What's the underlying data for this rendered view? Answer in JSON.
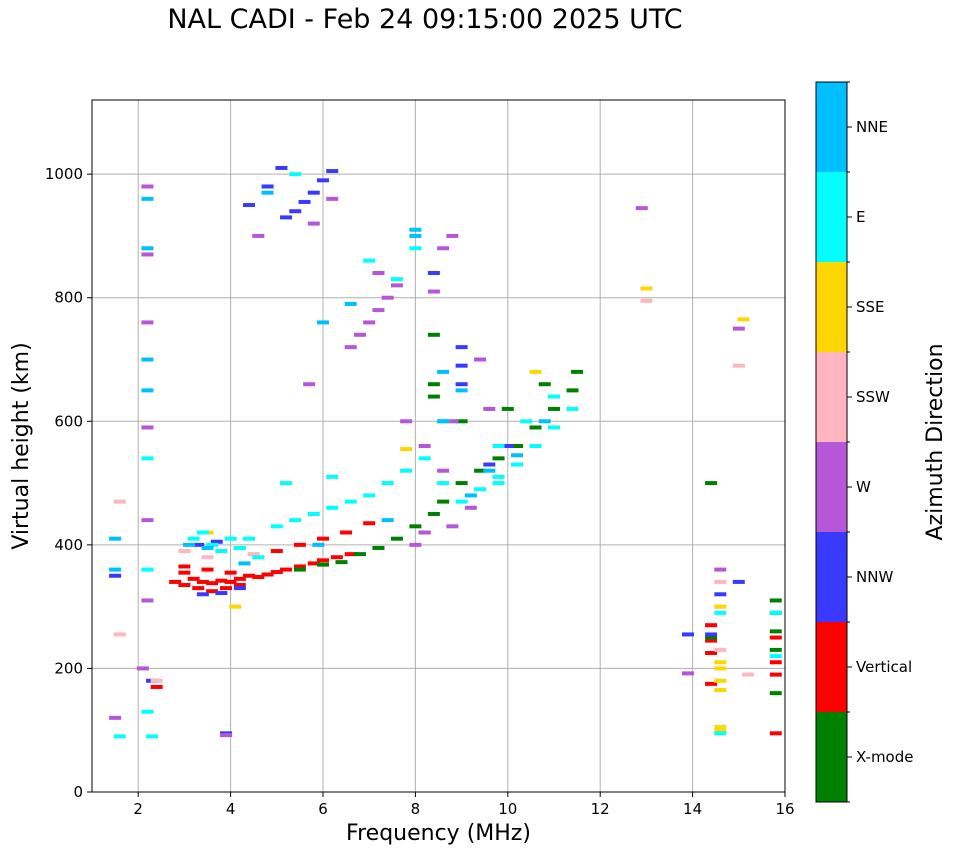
{
  "chart_data": {
    "type": "scatter",
    "title": "NAL CADI - Feb 24 09:15:00 2025 UTC",
    "xlabel": "Frequency (MHz)",
    "ylabel": "Virtual height (km)",
    "xlim": [
      1,
      16
    ],
    "ylim": [
      0,
      1120
    ],
    "xticks": [
      2,
      4,
      6,
      8,
      10,
      12,
      14,
      16
    ],
    "yticks": [
      0,
      200,
      400,
      600,
      800,
      1000
    ],
    "grid": true,
    "colorbar": {
      "label": "Azimuth Direction",
      "categories": [
        {
          "name": "X-mode",
          "color": "#008000"
        },
        {
          "name": "Vertical",
          "color": "#ff0000"
        },
        {
          "name": "NNW",
          "color": "#3a3aff"
        },
        {
          "name": "W",
          "color": "#b657d8"
        },
        {
          "name": "SSW",
          "color": "#ffb6c1"
        },
        {
          "name": "SSE",
          "color": "#ffd700"
        },
        {
          "name": "E",
          "color": "#00ffff"
        },
        {
          "name": "NNE",
          "color": "#00bfff"
        }
      ]
    },
    "series": [
      {
        "name": "Vertical",
        "color": "#ff0000",
        "points": [
          [
            2.8,
            340
          ],
          [
            3.0,
            335
          ],
          [
            3.2,
            345
          ],
          [
            3.4,
            340
          ],
          [
            3.6,
            338
          ],
          [
            3.8,
            342
          ],
          [
            4.0,
            340
          ],
          [
            4.2,
            345
          ],
          [
            4.4,
            350
          ],
          [
            4.6,
            348
          ],
          [
            4.8,
            352
          ],
          [
            5.0,
            356
          ],
          [
            5.2,
            360
          ],
          [
            5.5,
            365
          ],
          [
            5.8,
            370
          ],
          [
            6.0,
            375
          ],
          [
            6.3,
            380
          ],
          [
            6.6,
            385
          ],
          [
            3.0,
            355
          ],
          [
            3.3,
            330
          ],
          [
            3.6,
            325
          ],
          [
            3.9,
            330
          ],
          [
            4.2,
            335
          ],
          [
            3.0,
            365
          ],
          [
            3.5,
            360
          ],
          [
            4.0,
            355
          ],
          [
            5.0,
            390
          ],
          [
            5.5,
            400
          ],
          [
            6.0,
            410
          ],
          [
            6.5,
            420
          ],
          [
            7.0,
            435
          ],
          [
            14.4,
            270
          ],
          [
            14.4,
            245
          ],
          [
            14.4,
            225
          ],
          [
            14.4,
            175
          ],
          [
            15.8,
            250
          ],
          [
            15.8,
            210
          ],
          [
            15.8,
            190
          ],
          [
            15.8,
            95
          ],
          [
            2.4,
            170
          ]
        ]
      },
      {
        "name": "X-mode",
        "color": "#008000",
        "points": [
          [
            5.5,
            360
          ],
          [
            6.0,
            368
          ],
          [
            6.4,
            372
          ],
          [
            6.8,
            385
          ],
          [
            7.2,
            395
          ],
          [
            7.6,
            410
          ],
          [
            8.0,
            430
          ],
          [
            8.2,
            420
          ],
          [
            8.4,
            450
          ],
          [
            8.6,
            470
          ],
          [
            9.0,
            500
          ],
          [
            9.4,
            520
          ],
          [
            9.8,
            540
          ],
          [
            10.2,
            560
          ],
          [
            10.6,
            590
          ],
          [
            11.0,
            620
          ],
          [
            11.4,
            650
          ],
          [
            11.5,
            680
          ],
          [
            8.4,
            640
          ],
          [
            8.4,
            660
          ],
          [
            8.4,
            740
          ],
          [
            9.0,
            600
          ],
          [
            10.0,
            620
          ],
          [
            10.8,
            660
          ],
          [
            15.8,
            310
          ],
          [
            15.8,
            290
          ],
          [
            15.8,
            260
          ],
          [
            15.8,
            230
          ],
          [
            15.8,
            160
          ],
          [
            14.4,
            500
          ],
          [
            14.4,
            250
          ]
        ]
      },
      {
        "name": "NNW",
        "color": "#3a3aff",
        "points": [
          [
            3.4,
            320
          ],
          [
            3.8,
            322
          ],
          [
            4.2,
            330
          ],
          [
            3.3,
            400
          ],
          [
            3.7,
            405
          ],
          [
            5.2,
            930
          ],
          [
            5.4,
            940
          ],
          [
            5.6,
            955
          ],
          [
            5.8,
            970
          ],
          [
            6.0,
            990
          ],
          [
            6.2,
            1005
          ],
          [
            5.1,
            1010
          ],
          [
            4.8,
            980
          ],
          [
            4.4,
            950
          ],
          [
            9.0,
            660
          ],
          [
            9.0,
            690
          ],
          [
            9.0,
            720
          ],
          [
            8.4,
            840
          ],
          [
            9.6,
            530
          ],
          [
            10.0,
            560
          ],
          [
            15.0,
            340
          ],
          [
            14.6,
            320
          ],
          [
            1.5,
            350
          ],
          [
            3.9,
            95
          ],
          [
            2.3,
            180
          ],
          [
            13.9,
            255
          ],
          [
            14.4,
            255
          ]
        ]
      },
      {
        "name": "W",
        "color": "#b657d8",
        "points": [
          [
            6.6,
            720
          ],
          [
            6.8,
            740
          ],
          [
            7.0,
            760
          ],
          [
            7.2,
            780
          ],
          [
            7.4,
            800
          ],
          [
            7.6,
            820
          ],
          [
            7.2,
            840
          ],
          [
            8.2,
            420
          ],
          [
            8.0,
            400
          ],
          [
            8.8,
            430
          ],
          [
            9.2,
            460
          ],
          [
            8.6,
            880
          ],
          [
            8.8,
            900
          ],
          [
            8.4,
            810
          ],
          [
            8.8,
            600
          ],
          [
            9.4,
            700
          ],
          [
            8.2,
            560
          ],
          [
            8.6,
            520
          ],
          [
            5.8,
            920
          ],
          [
            6.2,
            960
          ],
          [
            4.6,
            900
          ],
          [
            12.9,
            945
          ],
          [
            15.0,
            750
          ],
          [
            14.6,
            360
          ],
          [
            13.9,
            192
          ],
          [
            2.2,
            980
          ],
          [
            2.2,
            870
          ],
          [
            2.2,
            760
          ],
          [
            2.2,
            590
          ],
          [
            2.2,
            440
          ],
          [
            2.2,
            310
          ],
          [
            2.1,
            200
          ],
          [
            3.9,
            92
          ],
          [
            5.7,
            660
          ],
          [
            1.5,
            120
          ],
          [
            7.8,
            600
          ],
          [
            9.6,
            620
          ]
        ]
      },
      {
        "name": "SSW",
        "color": "#ffb6c1",
        "points": [
          [
            13.0,
            795
          ],
          [
            15.0,
            690
          ],
          [
            1.6,
            470
          ],
          [
            1.6,
            255
          ],
          [
            2.4,
            180
          ],
          [
            3.0,
            390
          ],
          [
            3.5,
            380
          ],
          [
            4.5,
            385
          ],
          [
            14.6,
            340
          ],
          [
            14.6,
            300
          ],
          [
            14.6,
            230
          ],
          [
            15.2,
            190
          ]
        ]
      },
      {
        "name": "SSE",
        "color": "#ffd700",
        "points": [
          [
            13.0,
            815
          ],
          [
            15.1,
            765
          ],
          [
            14.6,
            200
          ],
          [
            14.6,
            180
          ],
          [
            14.6,
            165
          ],
          [
            14.6,
            105
          ],
          [
            14.6,
            100
          ],
          [
            14.6,
            210
          ],
          [
            14.6,
            300
          ],
          [
            7.8,
            555
          ],
          [
            10.6,
            680
          ],
          [
            3.5,
            420
          ],
          [
            4.1,
            300
          ]
        ]
      },
      {
        "name": "E",
        "color": "#00ffff",
        "points": [
          [
            3.2,
            410
          ],
          [
            3.6,
            400
          ],
          [
            4.0,
            410
          ],
          [
            4.4,
            410
          ],
          [
            3.4,
            420
          ],
          [
            3.8,
            390
          ],
          [
            4.2,
            395
          ],
          [
            4.6,
            380
          ],
          [
            5.0,
            430
          ],
          [
            5.4,
            440
          ],
          [
            5.8,
            450
          ],
          [
            6.2,
            460
          ],
          [
            6.6,
            470
          ],
          [
            7.0,
            480
          ],
          [
            7.4,
            500
          ],
          [
            7.8,
            520
          ],
          [
            8.2,
            540
          ],
          [
            8.6,
            500
          ],
          [
            9.0,
            470
          ],
          [
            9.4,
            490
          ],
          [
            9.8,
            510
          ],
          [
            10.2,
            530
          ],
          [
            10.6,
            560
          ],
          [
            11.0,
            590
          ],
          [
            11.4,
            620
          ],
          [
            9.8,
            560
          ],
          [
            9.8,
            500
          ],
          [
            10.4,
            600
          ],
          [
            11.0,
            640
          ],
          [
            7.0,
            860
          ],
          [
            7.6,
            830
          ],
          [
            8.0,
            880
          ],
          [
            5.4,
            1000
          ],
          [
            14.6,
            95
          ],
          [
            14.6,
            290
          ],
          [
            15.8,
            290
          ],
          [
            15.8,
            220
          ],
          [
            2.3,
            90
          ],
          [
            1.6,
            90
          ],
          [
            2.2,
            540
          ],
          [
            2.2,
            360
          ],
          [
            2.2,
            130
          ],
          [
            8.6,
            600
          ],
          [
            5.2,
            500
          ],
          [
            6.2,
            510
          ]
        ]
      },
      {
        "name": "NNE",
        "color": "#00bfff",
        "points": [
          [
            8.0,
            900
          ],
          [
            8.0,
            910
          ],
          [
            6.6,
            790
          ],
          [
            8.6,
            680
          ],
          [
            8.6,
            600
          ],
          [
            9.0,
            650
          ],
          [
            10.2,
            545
          ],
          [
            9.6,
            520
          ],
          [
            6.0,
            760
          ],
          [
            4.8,
            970
          ],
          [
            3.1,
            400
          ],
          [
            3.5,
            395
          ],
          [
            2.2,
            650
          ],
          [
            2.2,
            700
          ],
          [
            2.2,
            880
          ],
          [
            2.2,
            960
          ],
          [
            1.5,
            360
          ],
          [
            1.5,
            410
          ],
          [
            10.8,
            600
          ],
          [
            9.2,
            480
          ],
          [
            5.9,
            400
          ],
          [
            7.4,
            440
          ],
          [
            4.3,
            370
          ]
        ]
      }
    ]
  }
}
